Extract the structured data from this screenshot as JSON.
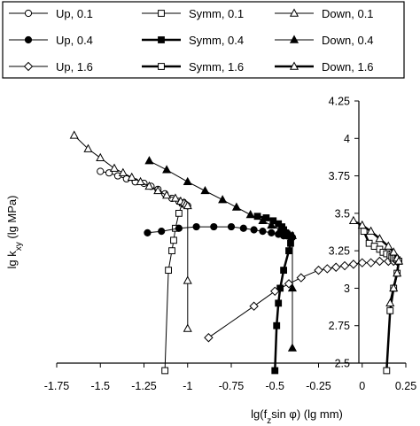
{
  "chart_data": {
    "type": "scatter",
    "xlabel": "lg(f",
    "xlabel_sub": "z",
    "xlabel_rest": "sin φ) (lg mm)",
    "ylabel": "lg k",
    "ylabel_sub": "xy",
    "ylabel_rest": " (lg MPa)",
    "xlim": [
      -1.75,
      0.25
    ],
    "ylim": [
      2.5,
      4.25
    ],
    "xticks": [
      "-1.75",
      "-1.5",
      "-1.25",
      "-1",
      "-0.75",
      "-0.5",
      "-0.25",
      "0",
      "0.25"
    ],
    "yticks": [
      "2.5",
      "2.75",
      "3",
      "3.25",
      "3.5",
      "3.75",
      "4",
      "4.25"
    ],
    "grid": false,
    "legend_position": "top",
    "legend_columns": 3,
    "series": [
      {
        "name": "Up, 0.1",
        "marker": "circle-open",
        "line_width": 1,
        "x": [
          -1.5,
          -1.45,
          -1.4,
          -1.35,
          -1.3,
          -1.25,
          -1.21,
          -1.17,
          -1.13,
          -1.09,
          -1.05,
          -1.02,
          -1.0
        ],
        "y": [
          3.78,
          3.77,
          3.75,
          3.73,
          3.71,
          3.7,
          3.68,
          3.66,
          3.63,
          3.6,
          3.58,
          3.56,
          3.55
        ]
      },
      {
        "name": "Symm, 0.1",
        "marker": "square-open",
        "line_width": 1,
        "x": [
          -1.03,
          -1.05,
          -1.07,
          -1.08,
          -1.09,
          -1.11,
          -1.13
        ],
        "y": [
          3.57,
          3.5,
          3.4,
          3.32,
          3.25,
          3.12,
          2.45
        ]
      },
      {
        "name": "Down, 0.1",
        "marker": "triangle-open",
        "line_width": 1,
        "x": [
          -1.65,
          -1.57,
          -1.5,
          -1.42,
          -1.37,
          -1.32,
          -1.27,
          -1.22,
          -1.17,
          -1.12,
          -1.07,
          -1.04,
          -1.02,
          -1.01,
          -1.0,
          -1.0,
          -1.0
        ],
        "y": [
          4.02,
          3.93,
          3.87,
          3.8,
          3.77,
          3.74,
          3.71,
          3.68,
          3.65,
          3.62,
          3.6,
          3.58,
          3.57,
          3.56,
          3.55,
          3.05,
          2.73
        ]
      },
      {
        "name": "Up, 0.4",
        "marker": "circle-filled",
        "line_width": 1,
        "x": [
          -1.23,
          -1.15,
          -1.05,
          -0.95,
          -0.85,
          -0.75,
          -0.68,
          -0.62,
          -0.57,
          -0.52,
          -0.48,
          -0.45,
          -0.43,
          -0.41,
          -0.4
        ],
        "y": [
          3.37,
          3.38,
          3.4,
          3.41,
          3.41,
          3.41,
          3.4,
          3.39,
          3.38,
          3.37,
          3.36,
          3.35,
          3.35,
          3.34,
          3.34
        ]
      },
      {
        "name": "Symm, 0.4",
        "marker": "square-filled",
        "line_width": 2.5,
        "x": [
          -0.6,
          -0.55,
          -0.51,
          -0.48,
          -0.46,
          -0.45,
          -0.44,
          -0.43,
          -0.42,
          -0.41,
          -0.41,
          -0.42,
          -0.45,
          -0.47,
          -0.48,
          -0.49,
          -0.5
        ],
        "y": [
          3.48,
          3.47,
          3.45,
          3.43,
          3.41,
          3.39,
          3.37,
          3.36,
          3.35,
          3.35,
          3.3,
          3.25,
          3.12,
          3.0,
          2.9,
          2.75,
          2.45
        ]
      },
      {
        "name": "Down, 0.4",
        "marker": "triangle-filled",
        "line_width": 1,
        "x": [
          -1.22,
          -1.12,
          -1.0,
          -0.9,
          -0.8,
          -0.72,
          -0.64,
          -0.57,
          -0.52,
          -0.47,
          -0.44,
          -0.42,
          -0.4,
          -0.4,
          -0.4
        ],
        "y": [
          3.85,
          3.79,
          3.71,
          3.65,
          3.59,
          3.54,
          3.49,
          3.45,
          3.42,
          3.39,
          3.37,
          3.36,
          3.35,
          3.0,
          2.6
        ]
      },
      {
        "name": "Up, 1.6",
        "marker": "diamond-open",
        "line_width": 1,
        "x": [
          -0.88,
          -0.62,
          -0.5,
          -0.42,
          -0.35,
          -0.25,
          -0.2,
          -0.15,
          -0.1,
          -0.05,
          0.0,
          0.05,
          0.1,
          0.15,
          0.18,
          0.2
        ],
        "y": [
          2.67,
          2.88,
          2.98,
          3.03,
          3.07,
          3.12,
          3.13,
          3.14,
          3.15,
          3.16,
          3.17,
          3.17,
          3.18,
          3.18,
          3.18,
          3.18
        ]
      },
      {
        "name": "Symm, 1.6",
        "marker": "square-open",
        "line_width": 2.5,
        "x": [
          0.01,
          0.04,
          0.07,
          0.1,
          0.12,
          0.14,
          0.16,
          0.17,
          0.18,
          0.19,
          0.2,
          0.21,
          0.2,
          0.18,
          0.16,
          0.14
        ],
        "y": [
          3.38,
          3.3,
          3.28,
          3.26,
          3.24,
          3.23,
          3.22,
          3.21,
          3.2,
          3.2,
          3.19,
          3.18,
          3.1,
          3.0,
          2.85,
          2.45
        ]
      },
      {
        "name": "Down, 1.6",
        "marker": "triangle-open",
        "line_width": 2.5,
        "x": [
          -0.05,
          0.0,
          0.05,
          0.1,
          0.15,
          0.18,
          0.2,
          0.21,
          0.2,
          0.18,
          0.16
        ],
        "y": [
          3.45,
          3.42,
          3.38,
          3.33,
          3.28,
          3.24,
          3.2,
          3.18,
          3.1,
          3.0,
          2.9
        ]
      }
    ]
  }
}
